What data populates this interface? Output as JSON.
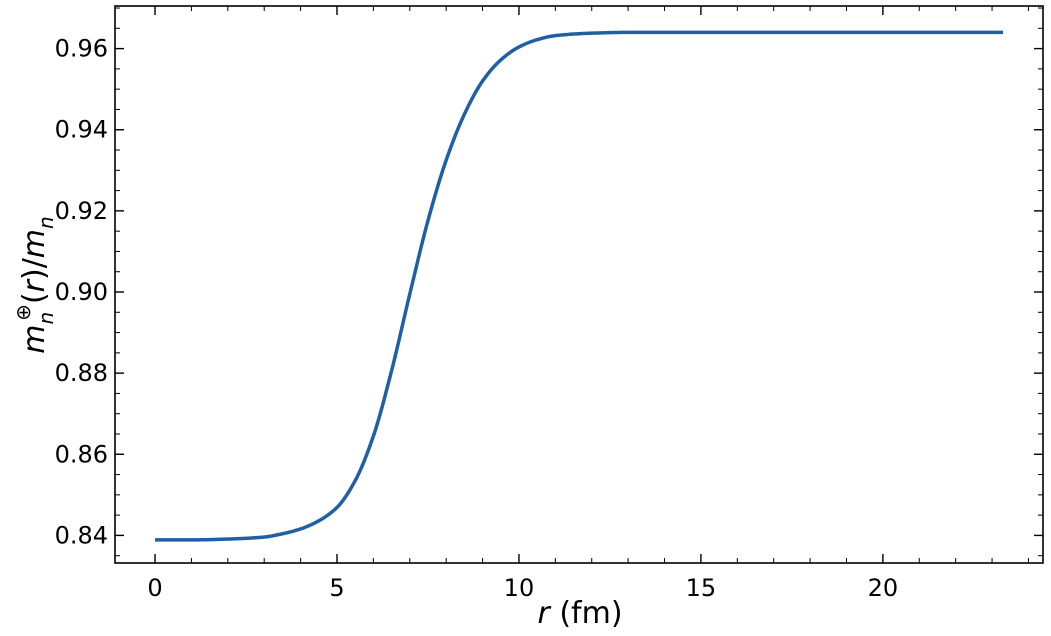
{
  "chart_data": {
    "type": "line",
    "title": "",
    "xlabel": "r (fm)",
    "ylabel": "m_n^⊕(r)/m_n",
    "xlim": [
      -1.1,
      24.4
    ],
    "ylim": [
      0.8332,
      0.9705
    ],
    "x_ticks": [
      0,
      5,
      10,
      15,
      20
    ],
    "x_tick_labels": [
      "0",
      "5",
      "10",
      "15",
      "20"
    ],
    "y_ticks": [
      0.84,
      0.86,
      0.88,
      0.9,
      0.92,
      0.94,
      0.96
    ],
    "y_tick_labels": [
      "0.84",
      "0.86",
      "0.88",
      "0.90",
      "0.92",
      "0.94",
      "0.96"
    ],
    "grid": false,
    "series": [
      {
        "color": "#1f5fa6",
        "x": [
          0,
          1,
          2,
          3,
          3.5,
          4,
          4.5,
          5,
          5.5,
          6,
          6.5,
          7,
          7.5,
          8,
          8.5,
          9,
          9.5,
          10,
          10.5,
          11,
          12,
          13,
          15,
          20,
          23.3
        ],
        "y": [
          0.8389,
          0.8389,
          0.8391,
          0.8396,
          0.8404,
          0.8416,
          0.8436,
          0.8469,
          0.8535,
          0.8645,
          0.8806,
          0.8995,
          0.9176,
          0.9325,
          0.9438,
          0.952,
          0.9572,
          0.9604,
          0.9622,
          0.9632,
          0.9638,
          0.964,
          0.964,
          0.964,
          0.964
        ]
      }
    ]
  }
}
